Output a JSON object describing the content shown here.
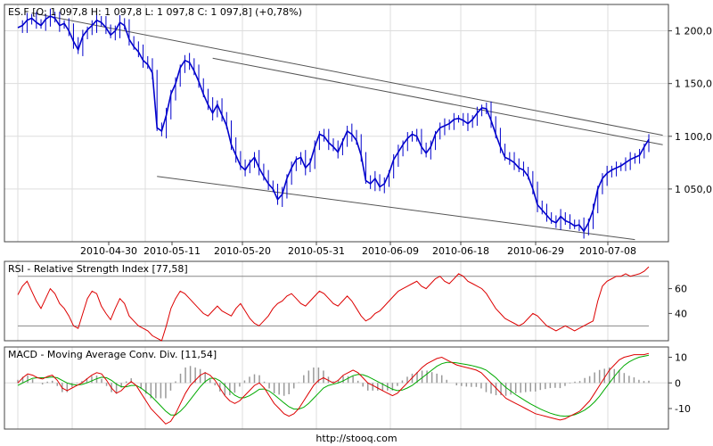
{
  "footer": "http://stooq.com",
  "colors": {
    "price": "#0000cc",
    "rsi": "#dd0000",
    "macd": "#dd0000",
    "signal": "#00aa00",
    "histogram": "#999999",
    "trendline": "#555555",
    "grid": "#dddddd",
    "frame": "#444444",
    "level": "#888888"
  },
  "chart_data": [
    {
      "type": "line",
      "title": "ES.F [O: 1 097,8  H: 1 097,8  L: 1 097,8  C: 1 097,8] (+0,78%)",
      "x_tick_labels": [
        "2010-04-30",
        "2010-05-11",
        "2010-05-20",
        "2010-05-31",
        "2010-06-09",
        "2010-06-18",
        "2010-06-29",
        "2010-07-08"
      ],
      "y_ticks": [
        1050,
        1100,
        1150,
        1200
      ],
      "y_tick_labels": [
        "1 050,0",
        "1 100,0",
        "1 150,0",
        "1 200,0"
      ],
      "ylim": [
        1000,
        1225
      ],
      "y_axis_side": "right",
      "grid": true,
      "series": [
        {
          "values": [
            1203,
            1205,
            1210,
            1212,
            1208,
            1205,
            1211,
            1214,
            1212,
            1205,
            1207,
            1200,
            1190,
            1182,
            1195,
            1201,
            1205,
            1210,
            1208,
            1203,
            1196,
            1200,
            1208,
            1205,
            1192,
            1185,
            1180,
            1172,
            1168,
            1160,
            1108,
            1105,
            1120,
            1140,
            1150,
            1165,
            1172,
            1170,
            1162,
            1152,
            1140,
            1130,
            1122,
            1130,
            1120,
            1110,
            1092,
            1082,
            1072,
            1068,
            1075,
            1080,
            1070,
            1062,
            1055,
            1050,
            1040,
            1045,
            1060,
            1070,
            1078,
            1080,
            1070,
            1075,
            1090,
            1102,
            1100,
            1094,
            1090,
            1085,
            1095,
            1105,
            1102,
            1096,
            1082,
            1058,
            1055,
            1060,
            1052,
            1055,
            1065,
            1078,
            1085,
            1092,
            1098,
            1102,
            1100,
            1090,
            1084,
            1090,
            1102,
            1108,
            1110,
            1112,
            1116,
            1117,
            1115,
            1112,
            1116,
            1122,
            1127,
            1126,
            1115,
            1102,
            1090,
            1080,
            1078,
            1075,
            1070,
            1068,
            1062,
            1050,
            1035,
            1030,
            1025,
            1020,
            1018,
            1024,
            1020,
            1018,
            1015,
            1016,
            1010,
            1018,
            1030,
            1050,
            1060,
            1065,
            1068,
            1070,
            1072,
            1075,
            1078,
            1080,
            1082,
            1090,
            1097
          ]
        }
      ],
      "trendlines": [
        {
          "from": [
            3,
            1217
          ],
          "to": [
            139,
            1101
          ]
        },
        {
          "from": [
            42,
            1174
          ],
          "to": [
            139,
            1092
          ]
        },
        {
          "from": [
            30,
            1062
          ],
          "to": [
            133,
            1002
          ]
        }
      ]
    },
    {
      "type": "line",
      "title": "RSI - Relative Strength Index [77,58]",
      "y_ticks": [
        40,
        60
      ],
      "y_tick_labels": [
        "40",
        "60"
      ],
      "ylim": [
        18,
        82
      ],
      "reference_levels": [
        30,
        70
      ],
      "series": [
        {
          "values": [
            55,
            62,
            66,
            58,
            50,
            44,
            52,
            60,
            56,
            48,
            44,
            38,
            30,
            28,
            40,
            52,
            58,
            56,
            46,
            40,
            35,
            44,
            52,
            48,
            38,
            34,
            30,
            28,
            26,
            22,
            20,
            18,
            30,
            44,
            52,
            58,
            56,
            52,
            48,
            44,
            40,
            38,
            42,
            46,
            42,
            40,
            38,
            44,
            48,
            42,
            36,
            32,
            30,
            34,
            38,
            44,
            48,
            50,
            54,
            56,
            52,
            48,
            46,
            50,
            54,
            58,
            56,
            52,
            48,
            46,
            50,
            54,
            50,
            44,
            38,
            34,
            36,
            40,
            42,
            46,
            50,
            54,
            58,
            60,
            62,
            64,
            66,
            62,
            60,
            64,
            68,
            70,
            66,
            64,
            68,
            72,
            70,
            66,
            64,
            62,
            60,
            56,
            50,
            44,
            40,
            36,
            34,
            32,
            30,
            32,
            36,
            40,
            38,
            34,
            30,
            28,
            26,
            28,
            30,
            28,
            26,
            28,
            30,
            32,
            34,
            50,
            62,
            66,
            68,
            70,
            70,
            72,
            70,
            71,
            72,
            74,
            77.58
          ]
        }
      ]
    },
    {
      "type": "line",
      "title": "MACD - Moving Average Conv. Div. [11,54]",
      "y_ticks": [
        -10,
        0,
        10
      ],
      "y_tick_labels": [
        "-10",
        "0",
        "10"
      ],
      "ylim": [
        -18,
        14
      ],
      "series": [
        {
          "name": "MACD",
          "values": [
            0,
            2,
            3.5,
            3,
            2,
            1.5,
            2.5,
            3,
            1,
            -2,
            -3,
            -2,
            -1,
            0,
            1.5,
            3,
            4,
            3.5,
            1,
            -2,
            -4,
            -3,
            -1,
            0.5,
            -1,
            -4,
            -7,
            -10,
            -12,
            -14,
            -16,
            -15,
            -12,
            -8,
            -4,
            -1,
            1,
            3,
            4,
            3,
            1,
            -2,
            -5,
            -7,
            -8,
            -7,
            -5,
            -3,
            -1,
            0,
            -2,
            -5,
            -8,
            -10,
            -12,
            -13,
            -12,
            -10,
            -7,
            -4,
            -1,
            1,
            2,
            1,
            0,
            1,
            3,
            4,
            5,
            4,
            2,
            0,
            -1,
            -2,
            -3,
            -4,
            -5,
            -4,
            -2,
            0,
            2,
            4,
            6,
            7.5,
            8.5,
            9.5,
            10,
            9,
            8,
            7,
            6.5,
            6,
            5.5,
            5,
            4,
            2,
            0,
            -2,
            -4,
            -6,
            -7,
            -8,
            -9,
            -10,
            -11,
            -12,
            -12.5,
            -13,
            -13.5,
            -14,
            -14.5,
            -14,
            -13,
            -12,
            -11,
            -9,
            -7,
            -4,
            -1,
            2,
            5,
            7,
            9,
            10,
            10.5,
            11,
            11,
            11,
            11.5
          ]
        },
        {
          "name": "Signal",
          "values": [
            -1,
            0,
            1,
            1.8,
            2,
            2,
            2.1,
            2.3,
            2,
            1,
            0,
            -0.6,
            -0.8,
            -0.6,
            0,
            0.8,
            1.6,
            2.2,
            2,
            1,
            -0.5,
            -1.5,
            -1.5,
            -1,
            -1,
            -2,
            -3.5,
            -5,
            -7,
            -9,
            -11,
            -12.5,
            -12.5,
            -11,
            -9,
            -6.5,
            -4,
            -1.5,
            0.5,
            1.8,
            1.8,
            0.8,
            -1,
            -3,
            -4.8,
            -5.8,
            -5.8,
            -5,
            -3.8,
            -2.5,
            -2.4,
            -3.2,
            -4.6,
            -6.2,
            -7.8,
            -9.3,
            -10.2,
            -10.2,
            -9.5,
            -8,
            -6,
            -4,
            -2,
            -1,
            -0.5,
            0,
            0.8,
            1.8,
            2.8,
            3.3,
            3.2,
            2.5,
            1.5,
            0.5,
            -0.5,
            -1.5,
            -2.5,
            -3,
            -2.8,
            -2,
            -1,
            0.5,
            2,
            3.5,
            5,
            6.5,
            7.5,
            8,
            8,
            7.8,
            7.5,
            7.2,
            6.8,
            6.3,
            5.8,
            5,
            3.5,
            2,
            0,
            -1.8,
            -3.2,
            -4.6,
            -5.8,
            -7,
            -8.2,
            -9.2,
            -10.2,
            -11,
            -11.8,
            -12.4,
            -12.8,
            -13,
            -12.8,
            -12.4,
            -11.6,
            -10.6,
            -9.2,
            -7.4,
            -5.2,
            -2.6,
            0,
            2.5,
            4.8,
            6.8,
            8.2,
            9.2,
            10,
            10.4,
            10.8
          ]
        }
      ]
    }
  ]
}
